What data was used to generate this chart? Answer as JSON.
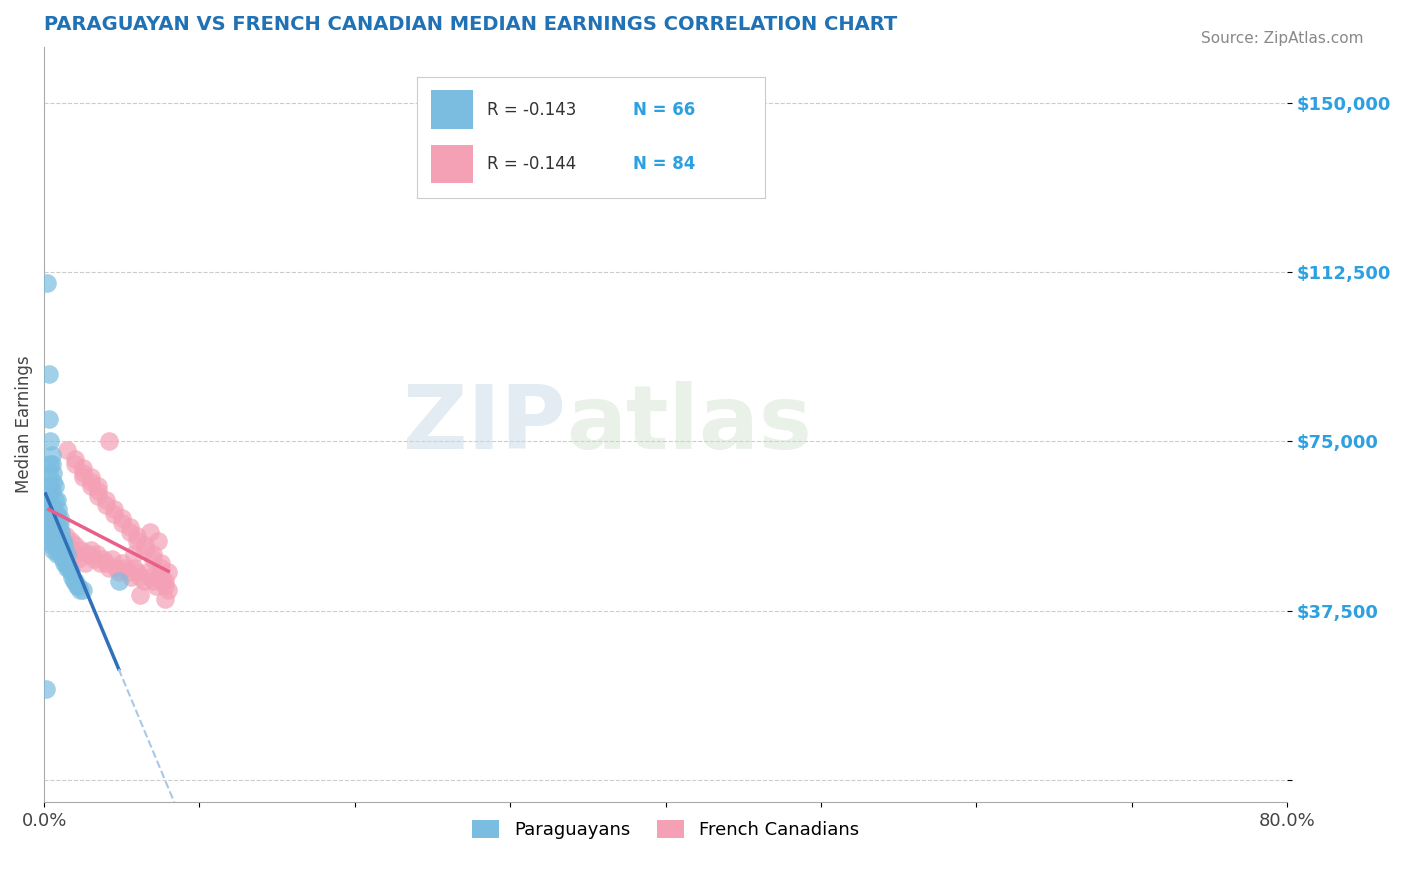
{
  "title": "PARAGUAYAN VS FRENCH CANADIAN MEDIAN EARNINGS CORRELATION CHART",
  "source_text": "Source: ZipAtlas.com",
  "ylabel": "Median Earnings",
  "xlim": [
    0.0,
    0.8
  ],
  "ylim": [
    -5000,
    162500
  ],
  "yticks": [
    0,
    37500,
    75000,
    112500,
    150000
  ],
  "ytick_labels": [
    "",
    "$37,500",
    "$75,000",
    "$112,500",
    "$150,000"
  ],
  "xticks": [
    0.0,
    0.1,
    0.2,
    0.3,
    0.4,
    0.5,
    0.6,
    0.7,
    0.8
  ],
  "xtick_labels": [
    "0.0%",
    "",
    "",
    "",
    "",
    "",
    "",
    "",
    "80.0%"
  ],
  "paraguayan_color": "#7bbde0",
  "french_canadian_color": "#f4a0b5",
  "trend_blue_color": "#3070b8",
  "trend_pink_color": "#e8608a",
  "trend_dashed_color": "#a8c8e8",
  "R_paraguayan": -0.143,
  "N_paraguayan": 66,
  "R_french_canadian": -0.144,
  "N_french_canadian": 84,
  "legend_label_1": "Paraguayans",
  "legend_label_2": "French Canadians",
  "watermark_zip": "ZIP",
  "watermark_atlas": "atlas",
  "background_color": "#ffffff",
  "title_color": "#2171b5",
  "ytick_color": "#2ca0e0",
  "source_color": "#888888",
  "paraguayan_x": [
    0.001,
    0.001,
    0.002,
    0.002,
    0.002,
    0.003,
    0.003,
    0.003,
    0.004,
    0.004,
    0.004,
    0.004,
    0.005,
    0.005,
    0.005,
    0.005,
    0.005,
    0.006,
    0.006,
    0.006,
    0.006,
    0.007,
    0.007,
    0.007,
    0.008,
    0.008,
    0.008,
    0.009,
    0.009,
    0.01,
    0.01,
    0.01,
    0.011,
    0.011,
    0.012,
    0.012,
    0.013,
    0.013,
    0.014,
    0.015,
    0.015,
    0.016,
    0.017,
    0.018,
    0.019,
    0.02,
    0.021,
    0.022,
    0.023,
    0.025,
    0.003,
    0.004,
    0.005,
    0.006,
    0.007,
    0.008,
    0.009,
    0.01,
    0.011,
    0.012,
    0.013,
    0.014,
    0.002,
    0.003,
    0.001,
    0.048
  ],
  "paraguayan_y": [
    58000,
    53000,
    55000,
    60000,
    62000,
    57000,
    63000,
    68000,
    54000,
    59000,
    65000,
    70000,
    52000,
    56000,
    61000,
    64000,
    72000,
    51000,
    55000,
    60000,
    66000,
    52000,
    57000,
    62000,
    50000,
    54000,
    59000,
    51000,
    56000,
    50000,
    54000,
    58000,
    50000,
    53000,
    49000,
    53000,
    48000,
    52000,
    48000,
    47000,
    50000,
    47000,
    46000,
    45000,
    44000,
    44000,
    43000,
    43000,
    42000,
    42000,
    80000,
    75000,
    70000,
    68000,
    65000,
    62000,
    60000,
    57000,
    55000,
    52000,
    50000,
    48000,
    110000,
    90000,
    20000,
    44000
  ],
  "french_canadian_x": [
    0.003,
    0.004,
    0.005,
    0.006,
    0.007,
    0.008,
    0.009,
    0.01,
    0.011,
    0.012,
    0.013,
    0.014,
    0.015,
    0.016,
    0.017,
    0.018,
    0.019,
    0.02,
    0.022,
    0.024,
    0.026,
    0.028,
    0.03,
    0.032,
    0.034,
    0.036,
    0.038,
    0.04,
    0.042,
    0.044,
    0.046,
    0.048,
    0.05,
    0.052,
    0.054,
    0.056,
    0.058,
    0.06,
    0.062,
    0.064,
    0.066,
    0.068,
    0.07,
    0.072,
    0.074,
    0.076,
    0.078,
    0.08,
    0.025,
    0.03,
    0.035,
    0.04,
    0.045,
    0.05,
    0.055,
    0.06,
    0.065,
    0.07,
    0.075,
    0.02,
    0.025,
    0.03,
    0.035,
    0.04,
    0.045,
    0.05,
    0.055,
    0.06,
    0.065,
    0.07,
    0.075,
    0.08,
    0.015,
    0.02,
    0.025,
    0.03,
    0.035,
    0.068,
    0.073,
    0.078,
    0.042,
    0.058,
    0.062,
    0.078
  ],
  "french_canadian_y": [
    55000,
    57000,
    54000,
    59000,
    56000,
    53000,
    57000,
    52000,
    55000,
    53000,
    51000,
    54000,
    52000,
    50000,
    53000,
    51000,
    50000,
    52000,
    49000,
    51000,
    48000,
    50000,
    51000,
    49000,
    50000,
    48000,
    49000,
    48000,
    47000,
    49000,
    47000,
    46000,
    48000,
    47000,
    46000,
    45000,
    47000,
    46000,
    45000,
    44000,
    46000,
    45000,
    44000,
    43000,
    45000,
    44000,
    43000,
    42000,
    67000,
    65000,
    63000,
    61000,
    59000,
    57000,
    55000,
    53000,
    51000,
    49000,
    47000,
    70000,
    68000,
    66000,
    64000,
    62000,
    60000,
    58000,
    56000,
    54000,
    52000,
    50000,
    48000,
    46000,
    73000,
    71000,
    69000,
    67000,
    65000,
    55000,
    53000,
    44000,
    75000,
    50000,
    41000,
    40000
  ]
}
